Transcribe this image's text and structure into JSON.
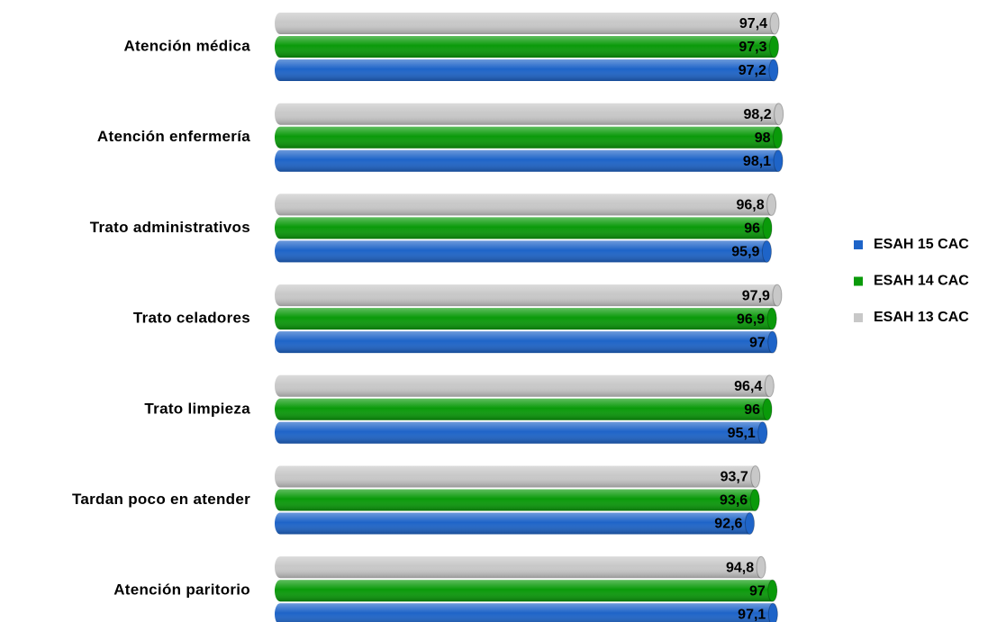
{
  "chart_data": {
    "type": "bar",
    "orientation": "horizontal",
    "categories": [
      "Atención médica",
      "Atención enfermería",
      "Trato administrativos",
      "Trato celadores",
      "Trato limpieza",
      "Tardan poco en atender",
      "Atención paritorio"
    ],
    "series": [
      {
        "name": "ESAH 15 CAC",
        "color": "#1e64c8",
        "values": [
          97.2,
          98.1,
          95.9,
          97,
          95.1,
          92.6,
          97.1
        ],
        "value_labels": [
          "97,2",
          "98,1",
          "95,9",
          "97",
          "95,1",
          "92,6",
          "97,1"
        ]
      },
      {
        "name": "ESAH 14 CAC",
        "color": "#0a9a0a",
        "values": [
          97.3,
          98,
          96,
          96.9,
          96,
          93.6,
          97
        ],
        "value_labels": [
          "97,3",
          "98",
          "96",
          "96,9",
          "96",
          "93,6",
          "97"
        ]
      },
      {
        "name": "ESAH 13 CAC",
        "color": "#c8c8c8",
        "values": [
          97.4,
          98.2,
          96.8,
          97.9,
          96.4,
          93.7,
          94.8
        ],
        "value_labels": [
          "97,4",
          "98,2",
          "96,8",
          "97,9",
          "96,4",
          "93,7",
          "94,8"
        ]
      }
    ],
    "legend": "right"
  }
}
